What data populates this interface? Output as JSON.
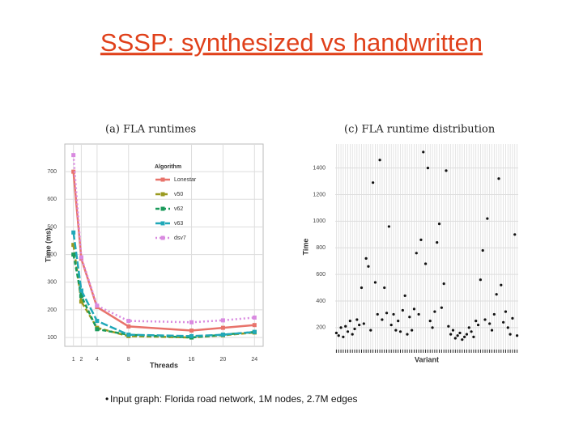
{
  "title": "SSSP: synthesized vs handwritten",
  "bullet": "Input graph: Florida road network, 1M nodes, 2.7M edges",
  "chart_data": [
    {
      "type": "line",
      "title": "(a) FLA runtimes",
      "xlabel": "Threads",
      "ylabel": "Time (ms)",
      "x": [
        1,
        2,
        4,
        8,
        16,
        20,
        24
      ],
      "xlim": [
        -0.1,
        25.1
      ],
      "xticks": [
        1,
        2,
        4,
        8,
        16,
        20,
        24
      ],
      "ylim": [
        68,
        800
      ],
      "yticks": [
        100,
        200,
        300,
        400,
        500,
        600,
        700
      ],
      "grid": true,
      "legend_title": "Algorithm",
      "legend": "upper center",
      "series": [
        {
          "name": "Lonestar",
          "color": "#e8736b",
          "values": [
            700,
            385,
            210,
            140,
            125,
            135,
            145
          ]
        },
        {
          "name": "v50",
          "color": "#9a9a1f",
          "values": [
            435,
            230,
            135,
            105,
            100,
            108,
            118
          ]
        },
        {
          "name": "v62",
          "color": "#1a9a5a",
          "values": [
            400,
            250,
            130,
            110,
            100,
            110,
            120
          ]
        },
        {
          "name": "v63",
          "color": "#20a8b8",
          "values": [
            480,
            270,
            160,
            110,
            105,
            110,
            120
          ]
        },
        {
          "name": "dsv7",
          "color": "#d98ae0",
          "values": [
            760,
            390,
            215,
            160,
            155,
            162,
            172
          ]
        }
      ]
    },
    {
      "type": "scatter",
      "title": "(c) FLA runtime distribution",
      "xlabel": "Variant",
      "ylabel": "Time",
      "categories": [
        null,
        null,
        null,
        null,
        null,
        null,
        null,
        null,
        null,
        null,
        null,
        null,
        null,
        null,
        null,
        null,
        null,
        null,
        null,
        null,
        null,
        null,
        null,
        null,
        null,
        null,
        null,
        null,
        null,
        null,
        null,
        null,
        null,
        null,
        null,
        null,
        null,
        null,
        null,
        null,
        null,
        null,
        null,
        null,
        null,
        null,
        null,
        null,
        null,
        null,
        null,
        null,
        null,
        null,
        null,
        null,
        null,
        null,
        null,
        null,
        null,
        null,
        null,
        null,
        null,
        null,
        null,
        null,
        null,
        null,
        null,
        null,
        null,
        null,
        null,
        null,
        null,
        null,
        null,
        null
      ],
      "values": [
        160,
        140,
        200,
        130,
        210,
        170,
        250,
        150,
        190,
        260,
        220,
        500,
        230,
        720,
        660,
        180,
        1290,
        540,
        300,
        1460,
        260,
        500,
        310,
        960,
        220,
        300,
        180,
        250,
        170,
        330,
        440,
        150,
        280,
        180,
        340,
        760,
        300,
        860,
        1520,
        680,
        1400,
        250,
        200,
        320,
        840,
        980,
        350,
        530,
        1380,
        210,
        150,
        180,
        120,
        140,
        160,
        110,
        130,
        150,
        200,
        170,
        130,
        250,
        220,
        560,
        780,
        260,
        1020,
        230,
        180,
        300,
        450,
        1320,
        520,
        240,
        320,
        200,
        150,
        270,
        900,
        140
      ],
      "color": "#111111",
      "ylim": [
        35,
        1580
      ],
      "yticks": [
        200,
        400,
        600,
        800,
        1000,
        1200,
        1400
      ],
      "grid": true
    }
  ]
}
